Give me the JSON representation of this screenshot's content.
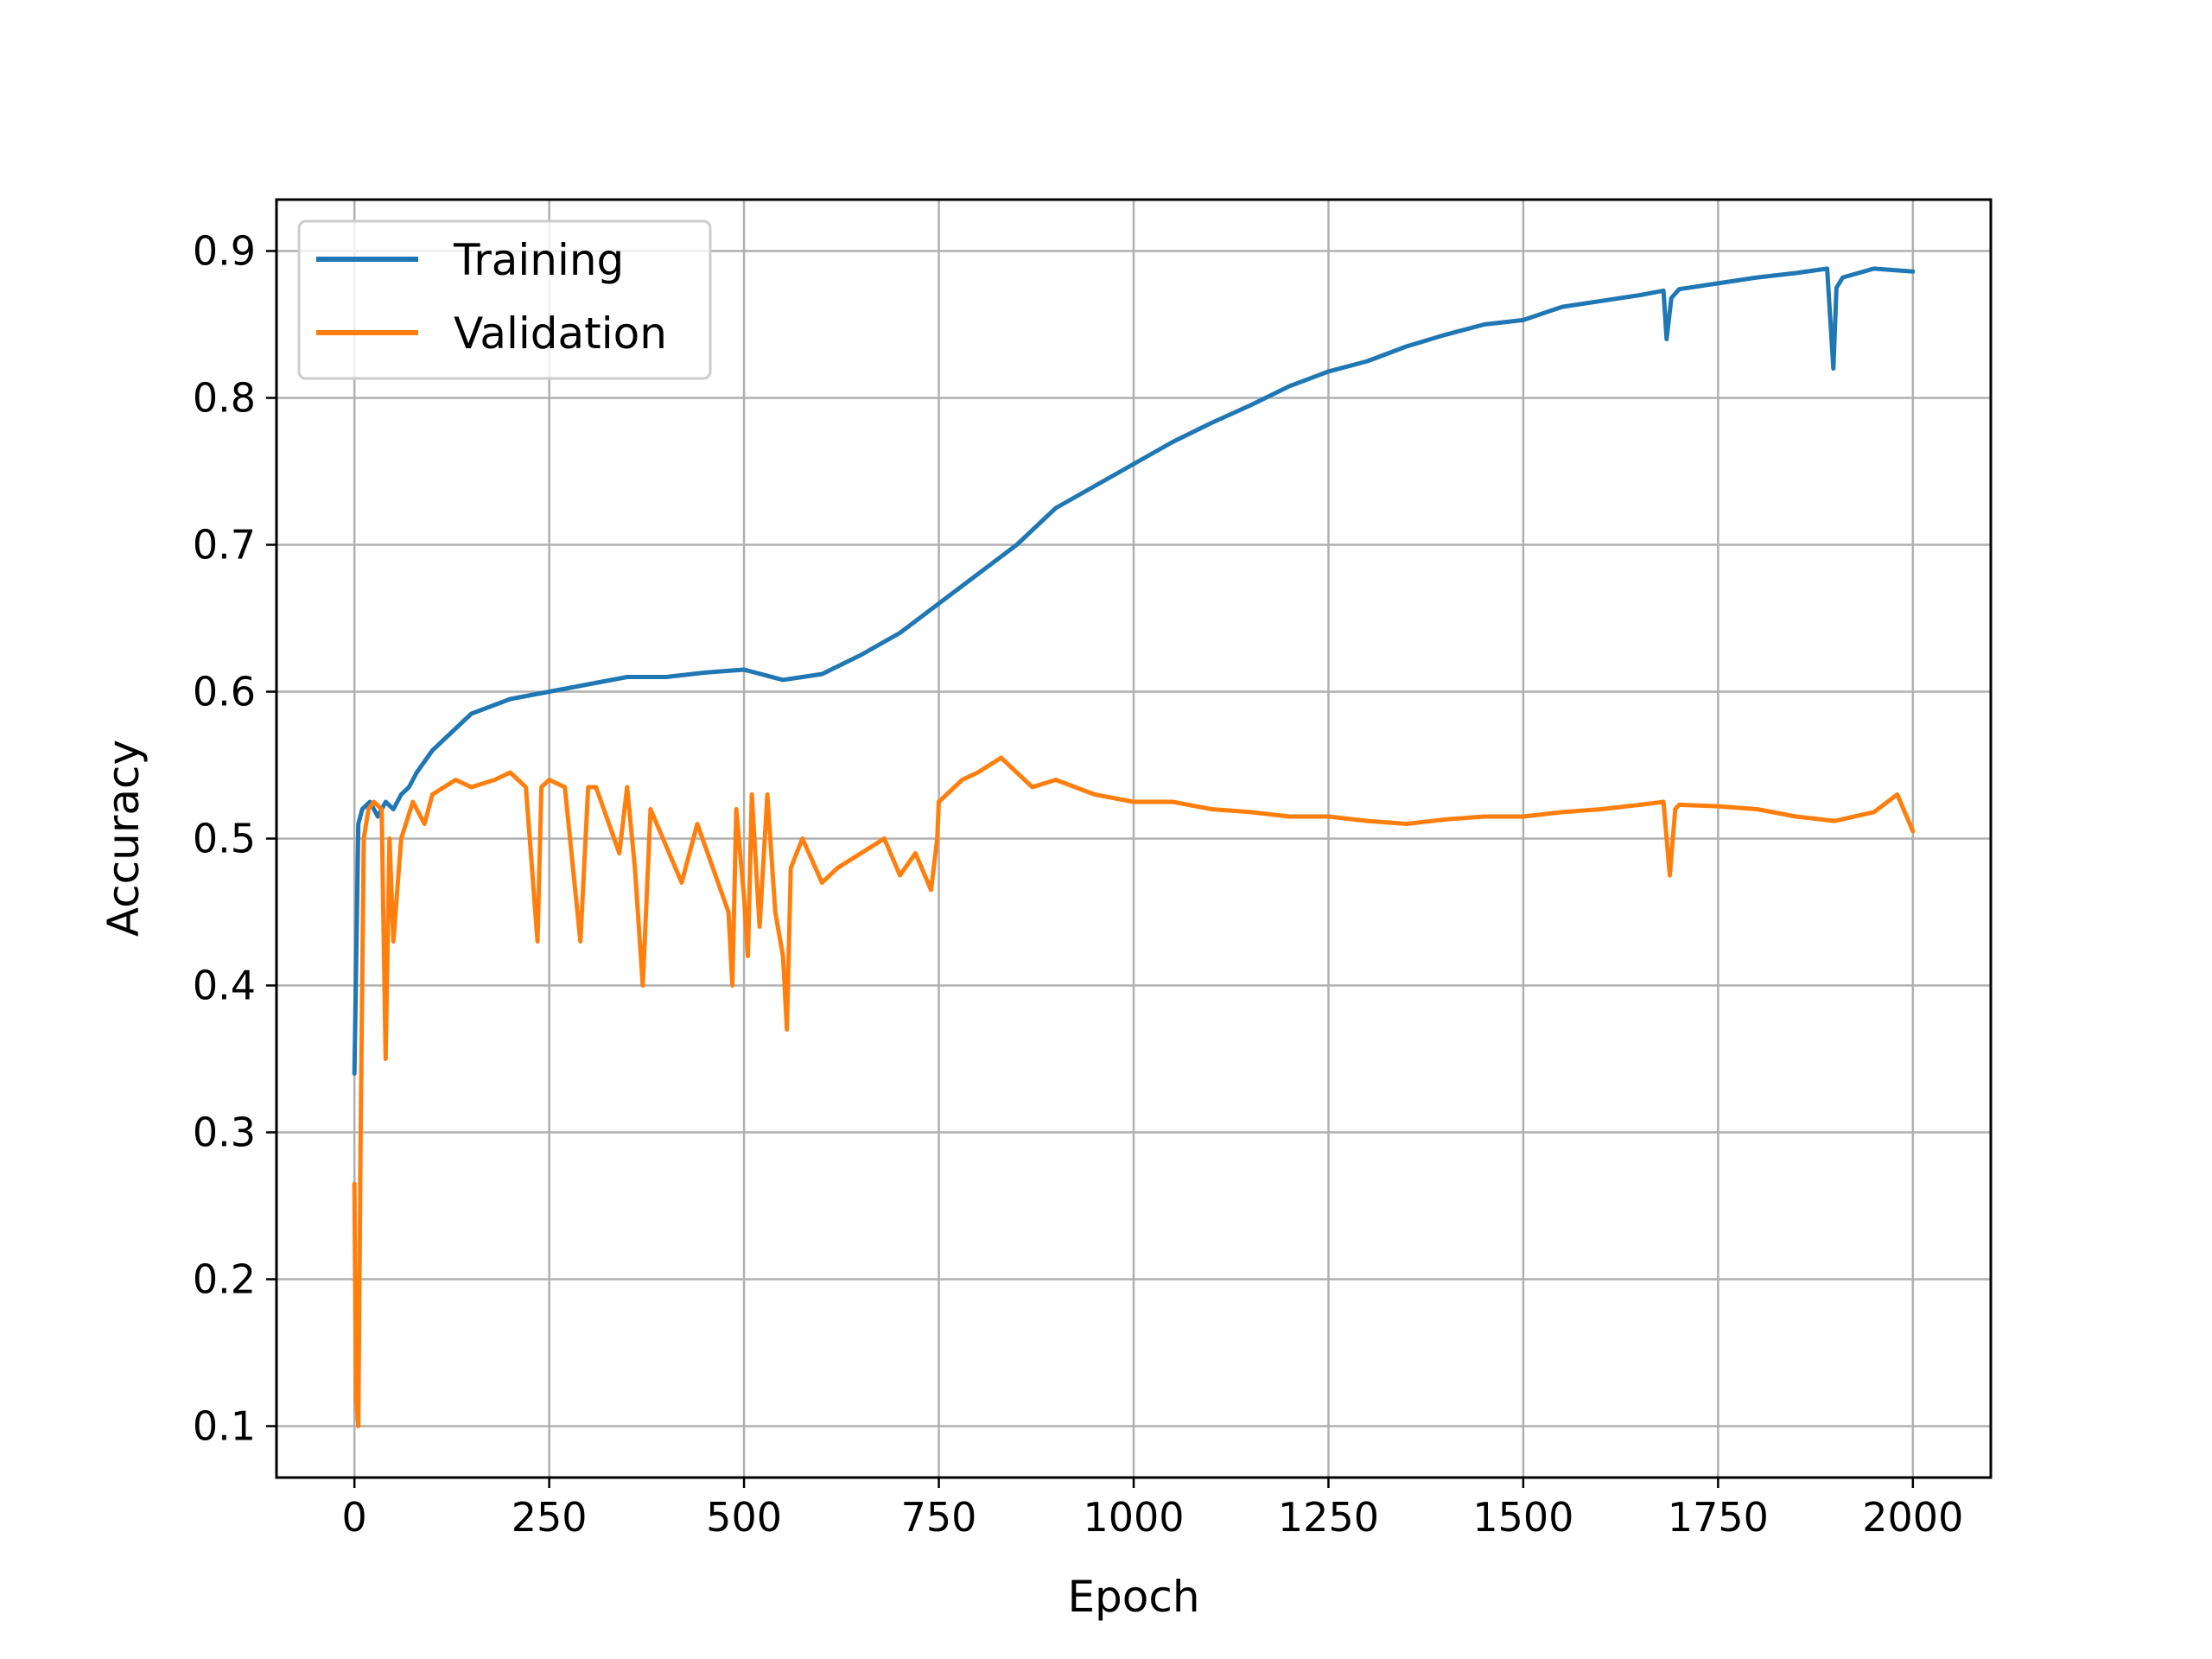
{
  "chart_data": {
    "type": "line",
    "title": "",
    "xlabel": "Epoch",
    "ylabel": "Accuracy",
    "xlim": [
      -100,
      2100
    ],
    "ylim": [
      0.065,
      0.935
    ],
    "xticks": [
      0,
      250,
      500,
      750,
      1000,
      1250,
      1500,
      1750,
      2000
    ],
    "xtick_labels": [
      "0",
      "250",
      "500",
      "750",
      "1000",
      "1250",
      "1500",
      "1750",
      "2000"
    ],
    "yticks": [
      0.1,
      0.2,
      0.3,
      0.4,
      0.5,
      0.6,
      0.7,
      0.8,
      0.9
    ],
    "ytick_labels": [
      "0.1",
      "0.2",
      "0.3",
      "0.4",
      "0.5",
      "0.6",
      "0.7",
      "0.8",
      "0.9"
    ],
    "grid": true,
    "legend_position": "upper-left",
    "series": [
      {
        "name": "Training",
        "color": "#1f77b4",
        "x": [
          0,
          5,
          10,
          20,
          30,
          40,
          50,
          60,
          70,
          80,
          100,
          120,
          150,
          200,
          250,
          300,
          350,
          400,
          450,
          500,
          550,
          600,
          650,
          700,
          750,
          800,
          850,
          900,
          950,
          1000,
          1050,
          1100,
          1150,
          1200,
          1250,
          1300,
          1350,
          1400,
          1450,
          1500,
          1550,
          1600,
          1650,
          1680,
          1684,
          1690,
          1700,
          1750,
          1800,
          1850,
          1890,
          1898,
          1902,
          1910,
          1950,
          2000
        ],
        "y": [
          0.34,
          0.51,
          0.52,
          0.525,
          0.515,
          0.525,
          0.52,
          0.53,
          0.535,
          0.545,
          0.56,
          0.57,
          0.585,
          0.595,
          0.6,
          0.605,
          0.61,
          0.61,
          0.613,
          0.615,
          0.608,
          0.612,
          0.625,
          0.64,
          0.66,
          0.68,
          0.7,
          0.725,
          0.74,
          0.755,
          0.77,
          0.783,
          0.795,
          0.808,
          0.818,
          0.825,
          0.835,
          0.843,
          0.85,
          0.853,
          0.862,
          0.866,
          0.87,
          0.873,
          0.84,
          0.868,
          0.874,
          0.878,
          0.882,
          0.885,
          0.888,
          0.82,
          0.875,
          0.882,
          0.888,
          0.886
        ]
      },
      {
        "name": "Validation",
        "color": "#ff7f0e",
        "x": [
          0,
          2,
          5,
          8,
          12,
          18,
          25,
          35,
          40,
          45,
          50,
          60,
          75,
          90,
          100,
          115,
          130,
          150,
          180,
          200,
          220,
          235,
          240,
          250,
          270,
          290,
          300,
          310,
          320,
          340,
          350,
          360,
          370,
          380,
          400,
          420,
          440,
          460,
          480,
          485,
          490,
          500,
          505,
          510,
          520,
          530,
          540,
          550,
          555,
          560,
          575,
          600,
          620,
          650,
          680,
          700,
          720,
          740,
          748,
          750,
          760,
          780,
          800,
          830,
          850,
          870,
          900,
          950,
          1000,
          1050,
          1100,
          1150,
          1200,
          1250,
          1300,
          1350,
          1400,
          1450,
          1500,
          1550,
          1600,
          1650,
          1680,
          1688,
          1695,
          1700,
          1750,
          1800,
          1850,
          1900,
          1950,
          1980,
          2000
        ],
        "y": [
          0.265,
          0.12,
          0.1,
          0.3,
          0.5,
          0.52,
          0.525,
          0.52,
          0.35,
          0.5,
          0.43,
          0.5,
          0.525,
          0.51,
          0.53,
          0.535,
          0.54,
          0.535,
          0.54,
          0.545,
          0.535,
          0.43,
          0.535,
          0.54,
          0.535,
          0.43,
          0.535,
          0.535,
          0.52,
          0.49,
          0.535,
          0.48,
          0.4,
          0.52,
          0.495,
          0.47,
          0.51,
          0.48,
          0.45,
          0.4,
          0.52,
          0.46,
          0.42,
          0.53,
          0.44,
          0.53,
          0.45,
          0.42,
          0.37,
          0.48,
          0.5,
          0.47,
          0.48,
          0.49,
          0.5,
          0.475,
          0.49,
          0.465,
          0.5,
          0.525,
          0.53,
          0.54,
          0.545,
          0.555,
          0.545,
          0.535,
          0.54,
          0.53,
          0.525,
          0.525,
          0.52,
          0.518,
          0.515,
          0.515,
          0.512,
          0.51,
          0.513,
          0.515,
          0.515,
          0.518,
          0.52,
          0.523,
          0.525,
          0.475,
          0.52,
          0.523,
          0.522,
          0.52,
          0.515,
          0.512,
          0.518,
          0.53,
          0.505
        ]
      }
    ]
  }
}
